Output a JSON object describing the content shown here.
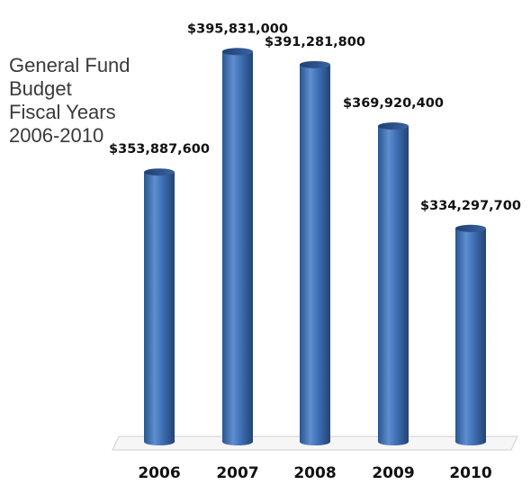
{
  "chart_data": {
    "type": "bar",
    "title_lines": [
      "General Fund",
      "Budget",
      "Fiscal Years",
      "2006-2010"
    ],
    "categories": [
      "2006",
      "2007",
      "2008",
      "2009",
      "2010"
    ],
    "values": [
      353887600,
      395831000,
      391281800,
      369920400,
      334297700
    ],
    "data_labels": [
      "$353,887,600",
      "$395,831,000",
      "$391,281,800",
      "$369,920,400",
      "$334,297,700"
    ],
    "xlabel": "",
    "ylabel": "",
    "ylim": [
      260000000,
      400000000
    ],
    "grid": false,
    "legend": "none",
    "style": "3d-cylinder",
    "colors": {
      "bar": "#3f6fb5",
      "bar_light": "#7fa6dc",
      "bar_dark": "#244a85",
      "floor": "#d9d9d9"
    }
  }
}
